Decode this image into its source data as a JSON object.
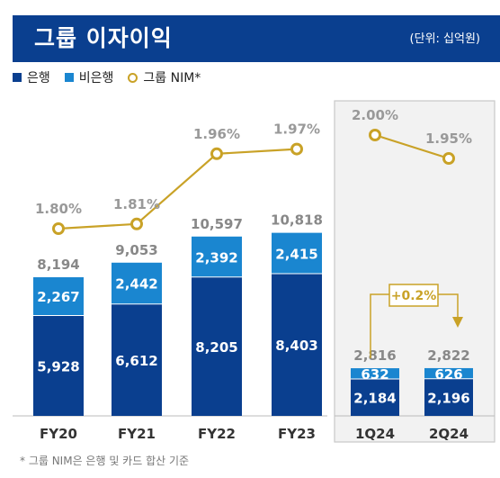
{
  "header": {
    "title": "그룹 이자이익",
    "unit": "(단위: 십억원)"
  },
  "legend": [
    {
      "label": "은행",
      "color": "#0a3f8f",
      "kind": "square"
    },
    {
      "label": "비은행",
      "color": "#1a86d0",
      "kind": "square"
    },
    {
      "label": "그룹 NIM*",
      "color": "#c9a227",
      "kind": "circle"
    }
  ],
  "colors": {
    "bank": "#0a3f8f",
    "nonbank": "#1a86d0",
    "nim": "#c9a227",
    "total_label": "#888888",
    "nim_label": "#999999",
    "axis": "#bbbbbb",
    "callout": "#c9a227"
  },
  "footnote": "* 그룹 NIM은 은행 및 카드 합산 기준",
  "chart_data": [
    {
      "type": "bar",
      "stacked": true,
      "categories": [
        "FY20",
        "FY21",
        "FY22",
        "FY23"
      ],
      "series": [
        {
          "name": "은행",
          "values": [
            5928,
            6612,
            8205,
            8403
          ]
        },
        {
          "name": "비은행",
          "values": [
            2267,
            2442,
            2392,
            2415
          ]
        }
      ],
      "series_labels": [
        [
          "5,928",
          "6,612",
          "8,205",
          "8,403"
        ],
        [
          "2,267",
          "2,442",
          "2,392",
          "2,415"
        ]
      ],
      "totals": [
        "8,194",
        "9,053",
        "10,597",
        "10,818"
      ],
      "line": {
        "name": "그룹 NIM*",
        "values": [
          1.8,
          1.81,
          1.96,
          1.97
        ],
        "labels": [
          "1.80%",
          "1.81%",
          "1.96%",
          "1.97%"
        ]
      }
    },
    {
      "type": "bar",
      "stacked": true,
      "boxed": true,
      "categories": [
        "1Q24",
        "2Q24"
      ],
      "series": [
        {
          "name": "은행",
          "values": [
            2184,
            2196
          ]
        },
        {
          "name": "비은행",
          "values": [
            632,
            626
          ]
        }
      ],
      "series_labels": [
        [
          "2,184",
          "2,196"
        ],
        [
          "632",
          "626"
        ]
      ],
      "totals": [
        "2,816",
        "2,822"
      ],
      "line": {
        "name": "그룹 NIM*",
        "values": [
          2.0,
          1.95
        ],
        "labels": [
          "2.00%",
          "1.95%"
        ]
      },
      "callout": "+0.2%"
    }
  ]
}
